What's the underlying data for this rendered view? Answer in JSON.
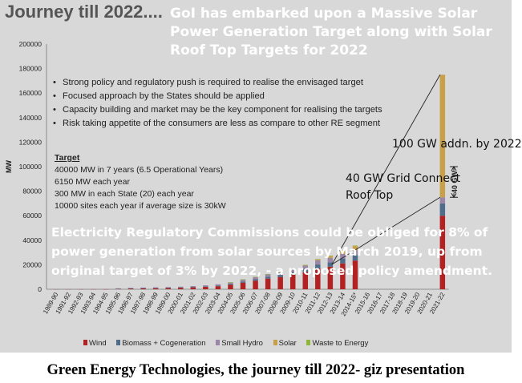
{
  "slide": {
    "title": "Journey till 2022....",
    "headline_lines": [
      "GoI has embarked upon a Massive Solar",
      "Power Generation Target along with Solar",
      "Roof Top Targets for 2022"
    ],
    "bullets": [
      "Strong policy and regulatory push is required to realise the envisaged target",
      "Focused approach by the States should be applied",
      "Capacity building and market may be the key component for realising the targets",
      "Risk taking appetite of the consumers are less as compare to other RE segment"
    ],
    "target": {
      "heading": "Target",
      "lines": [
        "40000 MW in 7 years (6.5 Operational Years)",
        "6150 MW each year",
        "300 MW in each State (20) each year",
        "10000 sites each year if average size is 30kW"
      ]
    },
    "overlay_lines": [
      "Electricity Regulatory Commissions could be obliged for  8% of",
      "power generation from solar sources by March 2019, up from",
      "original target of 3% by 2022, - a proposed policy amendment."
    ],
    "annotations": {
      "addition_100": "100 GW addn. by 2022",
      "grid_connect_40": "40 GW Grid Connect",
      "roof_top": "Roof Top",
      "bracket_40": "40 GW"
    },
    "caption": "Green Energy Technologies, the journey till 2022- giz presentation"
  },
  "chart_data": {
    "type": "bar",
    "stacked": true,
    "ylabel": "MW",
    "ylim": [
      0,
      200000
    ],
    "yticks": [
      0,
      20000,
      40000,
      60000,
      80000,
      100000,
      120000,
      140000,
      160000,
      180000,
      200000
    ],
    "grid": false,
    "legend_position": "bottom",
    "categories": [
      "1989-90",
      "1991-92",
      "1992-93",
      "1993-94",
      "1994-95",
      "1995-96",
      "1996-97",
      "1997-98",
      "1998-99",
      "1999-00",
      "2000-01",
      "2001-02",
      "2002-03",
      "2003-04",
      "2004-05",
      "2005-06",
      "2006-07",
      "2007-08",
      "2008-09",
      "2009-10",
      "2010-11",
      "2011-12",
      "2012-13",
      "2013-14",
      "2014-15*",
      "2015-16",
      "2016-17",
      "2017-18",
      "2018-19",
      "2019-20",
      "2020-21",
      "2021-22"
    ],
    "series": [
      {
        "name": "Wind",
        "color": "#b22222",
        "values": [
          20,
          40,
          60,
          80,
          200,
          500,
          800,
          900,
          1000,
          1100,
          1300,
          1600,
          2000,
          2500,
          3600,
          5300,
          7000,
          8700,
          10000,
          11800,
          14000,
          17000,
          18400,
          21100,
          23400,
          0,
          0,
          0,
          0,
          0,
          0,
          60000
        ]
      },
      {
        "name": "Biomass + Cogeneration",
        "color": "#4f6d8a",
        "values": [
          0,
          0,
          0,
          0,
          0,
          30,
          50,
          80,
          100,
          150,
          200,
          300,
          400,
          600,
          750,
          1000,
          1200,
          1500,
          1700,
          2300,
          2700,
          3200,
          3600,
          4000,
          4400,
          0,
          0,
          0,
          0,
          0,
          0,
          10000
        ]
      },
      {
        "name": "Small Hydro",
        "color": "#9b86a8",
        "values": [
          60,
          80,
          100,
          120,
          160,
          220,
          300,
          380,
          450,
          500,
          600,
          700,
          800,
          900,
          1300,
          1700,
          1900,
          2100,
          2400,
          2700,
          3000,
          3400,
          3600,
          3800,
          4000,
          0,
          0,
          0,
          0,
          0,
          0,
          5000
        ]
      },
      {
        "name": "Solar",
        "color": "#c9a04a",
        "values": [
          0,
          0,
          0,
          0,
          0,
          0,
          0,
          0,
          0,
          0,
          0,
          0,
          0,
          0,
          0,
          0,
          0,
          0,
          0,
          10,
          40,
          900,
          1700,
          2600,
          3700,
          0,
          0,
          0,
          0,
          0,
          0,
          100000
        ]
      },
      {
        "name": "Waste to Energy",
        "color": "#8fb83a",
        "values": [
          0,
          0,
          0,
          0,
          0,
          0,
          0,
          0,
          0,
          0,
          0,
          0,
          0,
          0,
          40,
          50,
          60,
          70,
          80,
          90,
          90,
          100,
          100,
          100,
          120,
          0,
          0,
          0,
          0,
          0,
          0,
          0
        ]
      }
    ]
  }
}
